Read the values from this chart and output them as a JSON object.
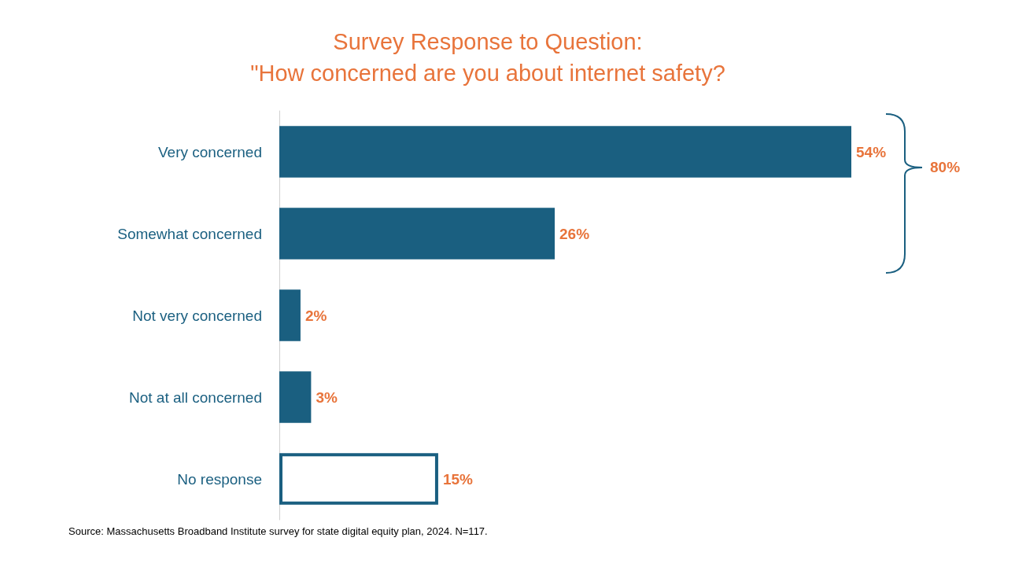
{
  "chart_data": {
    "type": "bar",
    "orientation": "horizontal",
    "title": "Survey Response to Question:\n\"How concerned are you about internet safety?",
    "categories": [
      "Very concerned",
      "Somewhat concerned",
      "Not very concerned",
      "Not at all concerned",
      "No response"
    ],
    "values": [
      54,
      26,
      2,
      3,
      15
    ],
    "value_labels": [
      "54%",
      "26%",
      "2%",
      "3%",
      "15%"
    ],
    "color": "#1a5f80",
    "colors": [
      "#1a5f80",
      "#1a5f80",
      "#1a5f80",
      "#1a5f80",
      "#ffffff"
    ],
    "tick_labels": "y",
    "grid": false,
    "annotations": [
      "80%",
      "Source: Massachusetts Broadband Institute survey for state digital equity plan, 2024. N=117."
    ]
  }
}
